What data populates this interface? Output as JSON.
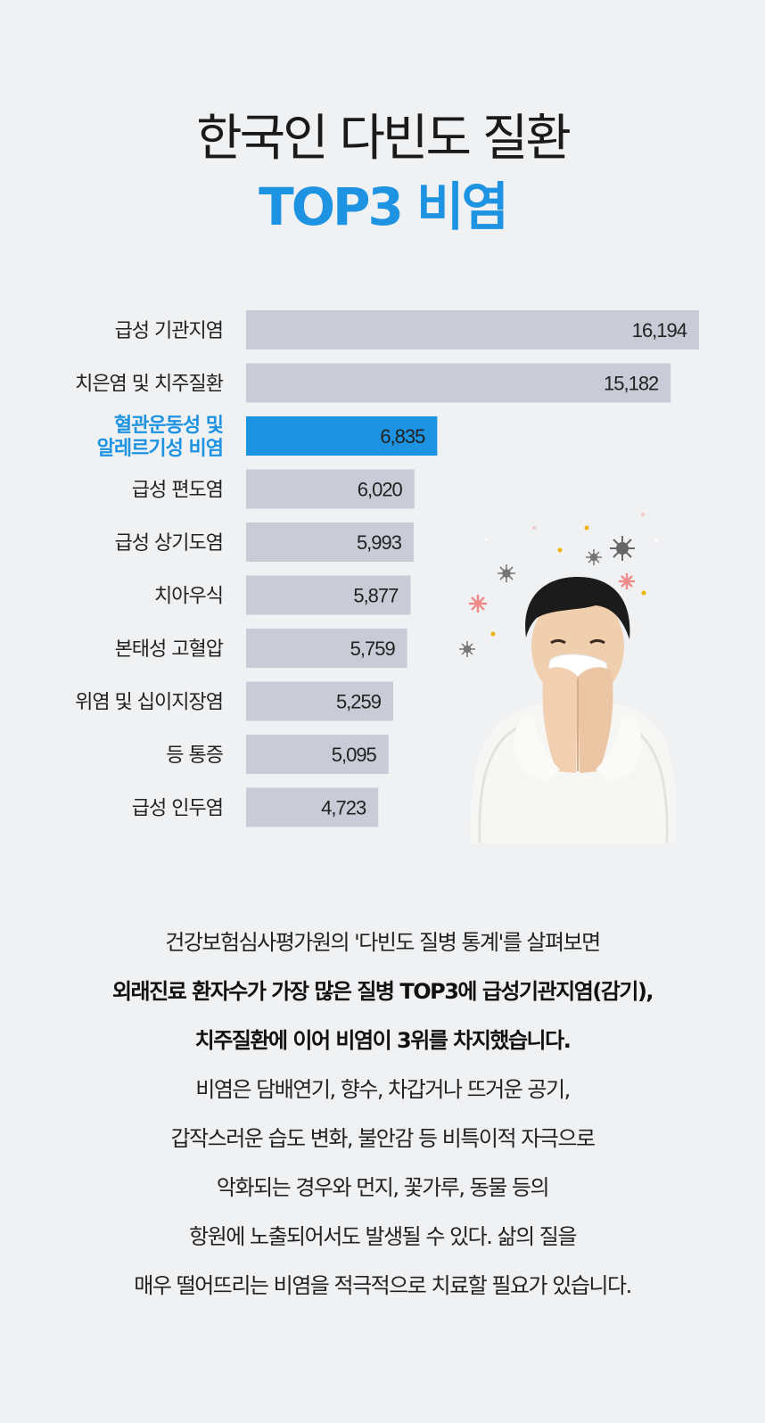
{
  "title": {
    "line1": "한국인 다빈도 질환",
    "line2": "TOP3 비염"
  },
  "colors": {
    "accent": "#1e93e2",
    "bar": "#c9ccd6",
    "background": "#f0f1f3"
  },
  "chart_data": {
    "type": "bar",
    "orientation": "horizontal",
    "categories": [
      [
        "급성 기관지염"
      ],
      [
        "치은염 및 치주질환"
      ],
      [
        "혈관운동성 및",
        "알레르기성 비염"
      ],
      [
        "급성 편도염"
      ],
      [
        "급성 상기도염"
      ],
      [
        "치아우식"
      ],
      [
        "본태성 고혈압"
      ],
      [
        "위염 및 십이지장염"
      ],
      [
        "등 통증"
      ],
      [
        "급성 인두염"
      ]
    ],
    "values": [
      16194,
      15182,
      6835,
      6020,
      5993,
      5877,
      5759,
      5259,
      5095,
      4723
    ],
    "value_labels": [
      "16,194",
      "15,182",
      "6,835",
      "6,020",
      "5,993",
      "5,877",
      "5,759",
      "5,259",
      "5,095",
      "4,723"
    ],
    "highlight_index": 2,
    "xlim": [
      0,
      16194
    ],
    "grid": false
  },
  "illustration": {
    "description_icon": "person-sneezing-icon"
  },
  "body": {
    "line1": "건강보험심사평가원의 '다빈도 질병 통계'를 살펴보면",
    "line2": "외래진료 환자수가 가장 많은 질병 TOP3에 급성기관지염(감기),",
    "line3": "치주질환에 이어 비염이 3위를 차지했습니다.",
    "line4": "비염은 담배연기, 향수, 차갑거나 뜨거운 공기,",
    "line5": "갑작스러운 습도 변화, 불안감 등 비특이적 자극으로",
    "line6": "악화되는 경우와 먼지, 꽃가루, 동물 등의",
    "line7": "항원에 노출되어서도 발생될 수 있다.  삶의 질을",
    "line8": "매우 떨어뜨리는 비염을 적극적으로 치료할 필요가 있습니다."
  }
}
